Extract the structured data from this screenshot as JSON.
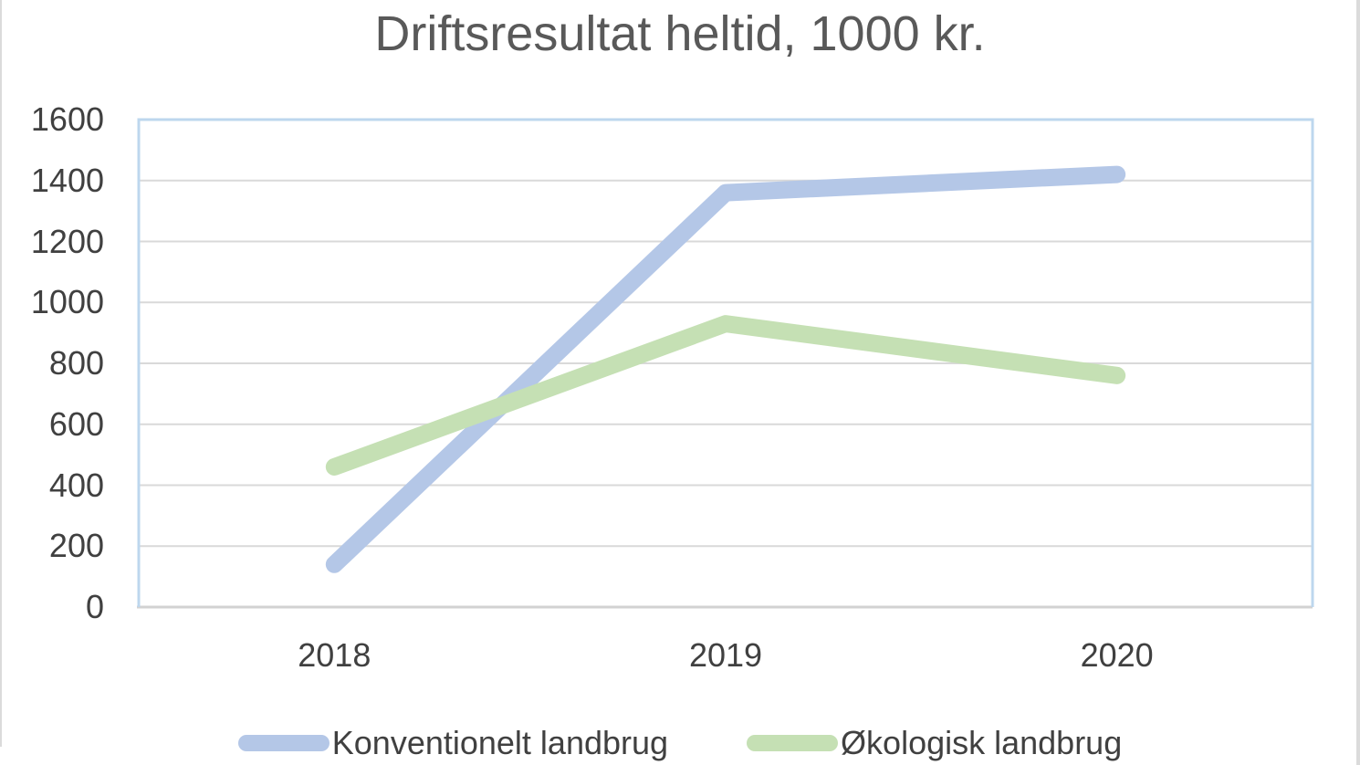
{
  "title": "Driftsresultat heltid, 1000 kr.",
  "chart_data": {
    "type": "line",
    "title": "Driftsresultat heltid, 1000 kr.",
    "categories": [
      "2018",
      "2019",
      "2020"
    ],
    "series": [
      {
        "name": "Konventionelt landbrug",
        "values": [
          140,
          1360,
          1420
        ],
        "color": "#B4C7E7"
      },
      {
        "name": "Økologisk landbrug",
        "values": [
          460,
          930,
          760
        ],
        "color": "#C5E0B4"
      }
    ],
    "xlabel": "",
    "ylabel": "",
    "ylim": [
      0,
      1600
    ],
    "ytick_step": 200,
    "yticks": [
      "0",
      "200",
      "400",
      "600",
      "800",
      "1000",
      "1200",
      "1400",
      "1600"
    ],
    "grid": "horizontal",
    "legend_position": "bottom",
    "line_style": "thick-round-cap",
    "colors": {
      "title_text": "#595959",
      "axis_text": "#404040",
      "gridline": "#D9D9D9",
      "axis_line": "#D2D2D2",
      "plot_border": "#BDD7EE",
      "page_edge": "#DBDBDB",
      "background": "#FFFFFF"
    }
  }
}
